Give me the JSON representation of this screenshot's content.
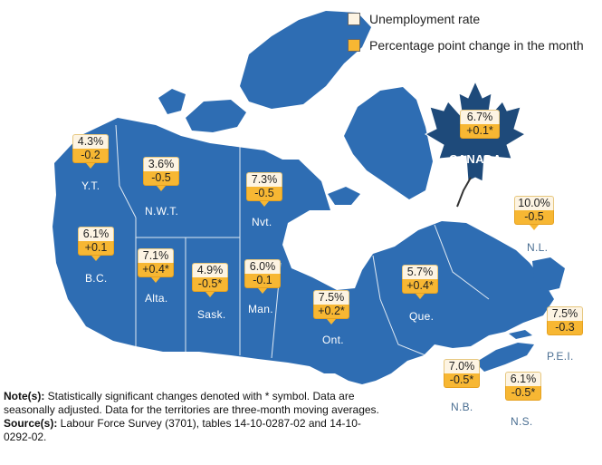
{
  "legend": {
    "rate_label": "Unemployment rate",
    "change_label": "Percentage point change in the month",
    "rate_color": "#fdf4e3",
    "change_color": "#f7b733"
  },
  "map": {
    "land_color": "#2e6db3",
    "water_color": "#ffffff"
  },
  "canada": {
    "name": "CANADA",
    "rate": "6.7%",
    "change": "+0.1*",
    "leaf_color": "#1e4a7a"
  },
  "regions": [
    {
      "abbr": "Y.T.",
      "rate": "4.3%",
      "change": "-0.2"
    },
    {
      "abbr": "N.W.T.",
      "rate": "3.6%",
      "change": "-0.5"
    },
    {
      "abbr": "Nvt.",
      "rate": "7.3%",
      "change": "-0.5"
    },
    {
      "abbr": "B.C.",
      "rate": "6.1%",
      "change": "+0.1"
    },
    {
      "abbr": "Alta.",
      "rate": "7.1%",
      "change": "+0.4*"
    },
    {
      "abbr": "Sask.",
      "rate": "4.9%",
      "change": "-0.5*"
    },
    {
      "abbr": "Man.",
      "rate": "6.0%",
      "change": "-0.1"
    },
    {
      "abbr": "Ont.",
      "rate": "7.5%",
      "change": "+0.2*"
    },
    {
      "abbr": "Que.",
      "rate": "5.7%",
      "change": "+0.4*"
    },
    {
      "abbr": "N.L.",
      "rate": "10.0%",
      "change": "-0.5"
    },
    {
      "abbr": "P.E.I.",
      "rate": "7.5%",
      "change": "-0.3"
    },
    {
      "abbr": "N.B.",
      "rate": "7.0%",
      "change": "-0.5*"
    },
    {
      "abbr": "N.S.",
      "rate": "6.1%",
      "change": "-0.5*"
    }
  ],
  "notes": {
    "notes_label": "Note(s):",
    "notes_text": " Statistically significant changes denoted with * symbol. Data are seasonally adjusted. Data for the territories are three-month moving averages.",
    "source_label": "Source(s):",
    "source_text": " Labour Force Survey (3701), tables 14-10-0287-02 and 14-10-0292-02."
  }
}
